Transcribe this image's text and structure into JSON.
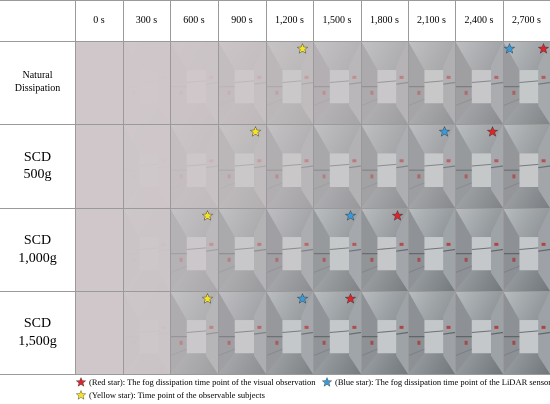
{
  "table": {
    "header": [
      "",
      "0 s",
      "300 s",
      "600 s",
      "900 s",
      "1,200 s",
      "1,500 s",
      "1,800 s",
      "2,100 s",
      "2,400 s",
      "2,700 s"
    ],
    "rows": [
      {
        "label": "Natural\nDissipation",
        "label_style": "small",
        "fog_levels": [
          1.0,
          0.98,
          0.92,
          0.82,
          0.7,
          0.58,
          0.48,
          0.38,
          0.28,
          0.2
        ],
        "stars": [
          {
            "col": 4,
            "color": "yellow"
          },
          {
            "col": 9,
            "color": "blue"
          },
          {
            "col": 9,
            "color": "red"
          }
        ]
      },
      {
        "label": "SCD\n500g",
        "label_style": "big",
        "fog_levels": [
          1.0,
          0.97,
          0.85,
          0.7,
          0.55,
          0.43,
          0.33,
          0.25,
          0.18,
          0.12
        ],
        "stars": [
          {
            "col": 3,
            "color": "yellow"
          },
          {
            "col": 7,
            "color": "blue"
          },
          {
            "col": 8,
            "color": "red"
          }
        ]
      },
      {
        "label": "SCD\n1,000g",
        "label_style": "big",
        "fog_levels": [
          1.0,
          0.95,
          0.62,
          0.45,
          0.3,
          0.18,
          0.1,
          0.06,
          0.04,
          0.03
        ],
        "stars": [
          {
            "col": 2,
            "color": "yellow"
          },
          {
            "col": 5,
            "color": "blue"
          },
          {
            "col": 6,
            "color": "red"
          }
        ]
      },
      {
        "label": "SCD\n1,500g",
        "label_style": "big",
        "fog_levels": [
          1.0,
          0.95,
          0.5,
          0.3,
          0.15,
          0.08,
          0.04,
          0.03,
          0.02,
          0.02
        ],
        "stars": [
          {
            "col": 2,
            "color": "yellow"
          },
          {
            "col": 4,
            "color": "blue"
          },
          {
            "col": 5,
            "color": "red"
          }
        ]
      }
    ]
  },
  "legend": {
    "red": "(Red star): The fog dissipation time point of the visual observation",
    "blue": "(Blue star): The fog dissipation time point of the LiDAR sensor",
    "yellow": "(Yellow star): Time point of the observable subjects"
  },
  "colors": {
    "red_star": "#d9262c",
    "blue_star": "#3a9ad9",
    "yellow_star": "#f4e32a",
    "grid_line": "#9a9a9a",
    "fog": "#cfc7c9",
    "scene_dark": "#6e7478",
    "scene_light": "#b8bdc0"
  }
}
